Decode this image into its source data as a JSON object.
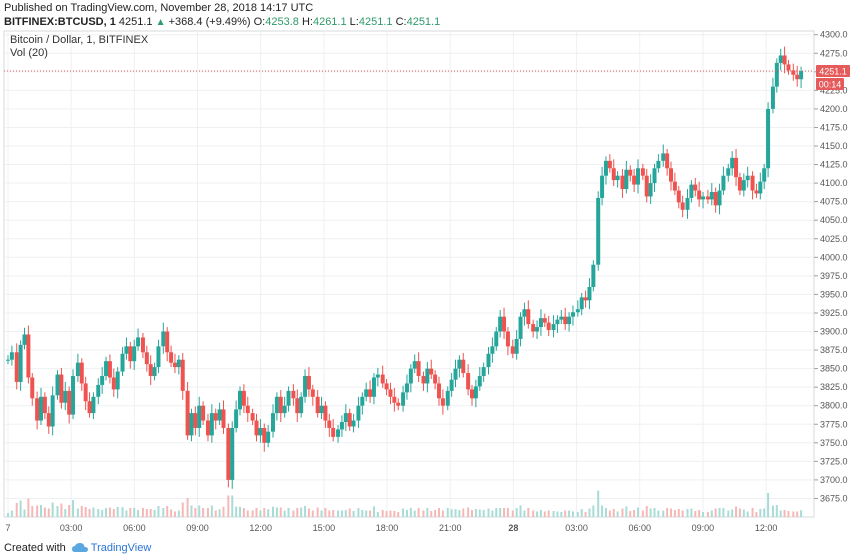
{
  "header": {
    "published": "Published on TradingView.com, November 28, 2018 14:17 UTC",
    "symbol": "BITFINEX:BTCUSD, 1",
    "last": "4251.1",
    "change": "+368.4 (+9.49%)",
    "o_label": "O:",
    "o_val": "4253.8",
    "h_label": "H:",
    "h_val": "4261.1",
    "l_label": "L:",
    "l_val": "4251.1",
    "c_label": "C:",
    "c_val": "4251.1"
  },
  "pane": {
    "title": "Bitcoin / Dollar, 1, BITFINEX",
    "volume": "Vol (20)"
  },
  "price_badge": "4251.1",
  "countdown_badge": "00:14",
  "footer": {
    "created_with": "Created with",
    "brand": "TradingView"
  },
  "colors": {
    "up": "#26a69a",
    "down": "#ef5350",
    "badge": "#e55a5a",
    "grid": "#eef0f3"
  },
  "chart_data": {
    "type": "candlestick",
    "title": "Bitcoin / Dollar, 1, BITFINEX",
    "ylim": [
      3650,
      4305
    ],
    "y_ticks": [
      "4300.0",
      "4275.0",
      "4250.0",
      "4225.0",
      "4200.0",
      "4175.0",
      "4150.0",
      "4125.0",
      "4100.0",
      "4075.0",
      "4050.0",
      "4025.0",
      "4000.0",
      "3975.0",
      "3950.0",
      "3925.0",
      "3900.0",
      "3875.0",
      "3850.0",
      "3825.0",
      "3800.0",
      "3775.0",
      "3750.0",
      "3725.0",
      "3700.0",
      "3675.0"
    ],
    "x_ticks": [
      "7",
      "03:00",
      "06:00",
      "09:00",
      "12:00",
      "15:00",
      "18:00",
      "21:00",
      "28",
      "03:00",
      "06:00",
      "09:00",
      "12:00"
    ],
    "current_price": 4251.1,
    "grid": true,
    "series": [
      {
        "values": [
          [
            0,
            3862
          ],
          [
            0.4,
            3872
          ],
          [
            0.9,
            3832
          ],
          [
            1.3,
            3882
          ],
          [
            1.7,
            3896
          ],
          [
            2.1,
            3838
          ],
          [
            2.5,
            3810
          ],
          [
            3.0,
            3780
          ],
          [
            3.4,
            3812
          ],
          [
            3.8,
            3790
          ],
          [
            4.2,
            3772
          ],
          [
            4.6,
            3814
          ],
          [
            5.1,
            3842
          ],
          [
            5.5,
            3804
          ],
          [
            5.9,
            3820
          ],
          [
            6.3,
            3788
          ],
          [
            6.7,
            3840
          ],
          [
            7.2,
            3858
          ],
          [
            7.6,
            3830
          ],
          [
            8.0,
            3806
          ],
          [
            8.4,
            3790
          ],
          [
            8.8,
            3812
          ],
          [
            9.3,
            3828
          ],
          [
            9.7,
            3840
          ],
          [
            10.1,
            3860
          ],
          [
            10.5,
            3838
          ],
          [
            10.9,
            3822
          ],
          [
            11.3,
            3846
          ],
          [
            11.8,
            3870
          ],
          [
            12.2,
            3880
          ],
          [
            12.6,
            3860
          ],
          [
            13.0,
            3880
          ],
          [
            13.4,
            3892
          ],
          [
            13.9,
            3872
          ],
          [
            14.3,
            3856
          ],
          [
            14.7,
            3840
          ],
          [
            15.1,
            3852
          ],
          [
            15.5,
            3880
          ],
          [
            16.0,
            3900
          ],
          [
            16.4,
            3872
          ],
          [
            16.8,
            3858
          ],
          [
            17.2,
            3852
          ],
          [
            17.6,
            3862
          ],
          [
            18.0,
            3820
          ],
          [
            18.5,
            3760
          ],
          [
            18.9,
            3790
          ],
          [
            19.3,
            3770
          ],
          [
            19.7,
            3800
          ],
          [
            20.1,
            3780
          ],
          [
            20.6,
            3760
          ],
          [
            21.0,
            3790
          ],
          [
            21.4,
            3780
          ],
          [
            21.8,
            3795
          ],
          [
            22.2,
            3770
          ],
          [
            22.7,
            3700
          ],
          [
            23.1,
            3770
          ],
          [
            23.5,
            3795
          ],
          [
            23.9,
            3820
          ],
          [
            24.3,
            3800
          ],
          [
            24.7,
            3790
          ],
          [
            25.2,
            3780
          ],
          [
            25.6,
            3760
          ],
          [
            26.0,
            3770
          ],
          [
            26.4,
            3750
          ],
          [
            26.8,
            3765
          ],
          [
            27.3,
            3790
          ],
          [
            27.7,
            3812
          ],
          [
            28.1,
            3790
          ],
          [
            28.5,
            3800
          ],
          [
            28.9,
            3820
          ],
          [
            29.4,
            3810
          ],
          [
            29.8,
            3790
          ],
          [
            30.2,
            3812
          ],
          [
            30.6,
            3840
          ],
          [
            31.0,
            3822
          ],
          [
            31.4,
            3812
          ],
          [
            31.9,
            3790
          ],
          [
            32.3,
            3800
          ],
          [
            32.7,
            3780
          ],
          [
            33.1,
            3770
          ],
          [
            33.5,
            3758
          ],
          [
            34.0,
            3768
          ],
          [
            34.4,
            3778
          ],
          [
            34.8,
            3790
          ],
          [
            35.2,
            3772
          ],
          [
            35.6,
            3780
          ],
          [
            36.1,
            3800
          ],
          [
            36.5,
            3812
          ],
          [
            36.9,
            3822
          ],
          [
            37.3,
            3812
          ],
          [
            37.7,
            3838
          ],
          [
            38.1,
            3842
          ],
          [
            38.6,
            3830
          ],
          [
            39.0,
            3822
          ],
          [
            39.4,
            3812
          ],
          [
            39.8,
            3804
          ],
          [
            40.2,
            3800
          ],
          [
            40.7,
            3818
          ],
          [
            41.1,
            3830
          ],
          [
            41.5,
            3850
          ],
          [
            41.9,
            3860
          ],
          [
            42.3,
            3840
          ],
          [
            42.8,
            3830
          ],
          [
            43.2,
            3850
          ],
          [
            43.6,
            3842
          ],
          [
            44.0,
            3830
          ],
          [
            44.4,
            3810
          ],
          [
            44.8,
            3800
          ],
          [
            45.3,
            3820
          ],
          [
            45.7,
            3835
          ],
          [
            46.1,
            3850
          ],
          [
            46.5,
            3862
          ],
          [
            46.9,
            3844
          ],
          [
            47.4,
            3822
          ],
          [
            47.8,
            3810
          ],
          [
            48.2,
            3826
          ],
          [
            48.6,
            3840
          ],
          [
            49.0,
            3852
          ],
          [
            49.5,
            3870
          ],
          [
            49.9,
            3880
          ],
          [
            50.3,
            3900
          ],
          [
            50.7,
            3920
          ],
          [
            51.1,
            3900
          ],
          [
            51.5,
            3880
          ],
          [
            52.0,
            3870
          ],
          [
            52.4,
            3890
          ],
          [
            52.8,
            3920
          ],
          [
            53.2,
            3930
          ],
          [
            53.6,
            3910
          ],
          [
            54.1,
            3900
          ],
          [
            54.5,
            3906
          ],
          [
            54.9,
            3918
          ],
          [
            55.3,
            3912
          ],
          [
            55.7,
            3902
          ],
          [
            56.2,
            3910
          ],
          [
            56.6,
            3916
          ],
          [
            57.0,
            3920
          ],
          [
            57.4,
            3910
          ],
          [
            57.8,
            3920
          ],
          [
            58.2,
            3926
          ],
          [
            58.7,
            3930
          ],
          [
            59.1,
            3946
          ],
          [
            59.5,
            3942
          ],
          [
            59.9,
            3960
          ],
          [
            60.3,
            3990
          ],
          [
            60.8,
            4080
          ],
          [
            61.2,
            4110
          ],
          [
            61.6,
            4130
          ],
          [
            62.0,
            4120
          ],
          [
            62.4,
            4104
          ],
          [
            62.8,
            4110
          ],
          [
            63.3,
            4092
          ],
          [
            63.7,
            4118
          ],
          [
            64.1,
            4110
          ],
          [
            64.5,
            4098
          ],
          [
            64.9,
            4120
          ],
          [
            65.4,
            4110
          ],
          [
            65.8,
            4082
          ],
          [
            66.2,
            4100
          ],
          [
            66.6,
            4120
          ],
          [
            67.0,
            4130
          ],
          [
            67.5,
            4140
          ],
          [
            67.9,
            4120
          ],
          [
            68.3,
            4102
          ],
          [
            68.7,
            4090
          ],
          [
            69.1,
            4074
          ],
          [
            69.5,
            4064
          ],
          [
            70.0,
            4080
          ],
          [
            70.4,
            4098
          ],
          [
            70.8,
            4090
          ],
          [
            71.2,
            4078
          ],
          [
            71.6,
            4082
          ],
          [
            72.1,
            4078
          ],
          [
            72.5,
            4088
          ],
          [
            72.9,
            4070
          ],
          [
            73.3,
            4090
          ],
          [
            73.7,
            4110
          ],
          [
            74.2,
            4120
          ],
          [
            74.6,
            4134
          ],
          [
            75.0,
            4108
          ],
          [
            75.4,
            4090
          ],
          [
            75.8,
            4104
          ],
          [
            76.2,
            4110
          ],
          [
            76.7,
            4090
          ],
          [
            77.1,
            4086
          ],
          [
            77.5,
            4102
          ],
          [
            77.9,
            4120
          ],
          [
            78.3,
            4200
          ],
          [
            78.8,
            4230
          ],
          [
            79.2,
            4262
          ],
          [
            79.6,
            4272
          ],
          [
            80.0,
            4260
          ],
          [
            80.4,
            4252
          ],
          [
            80.9,
            4246
          ],
          [
            81.3,
            4240
          ],
          [
            81.7,
            4251
          ]
        ]
      }
    ]
  }
}
